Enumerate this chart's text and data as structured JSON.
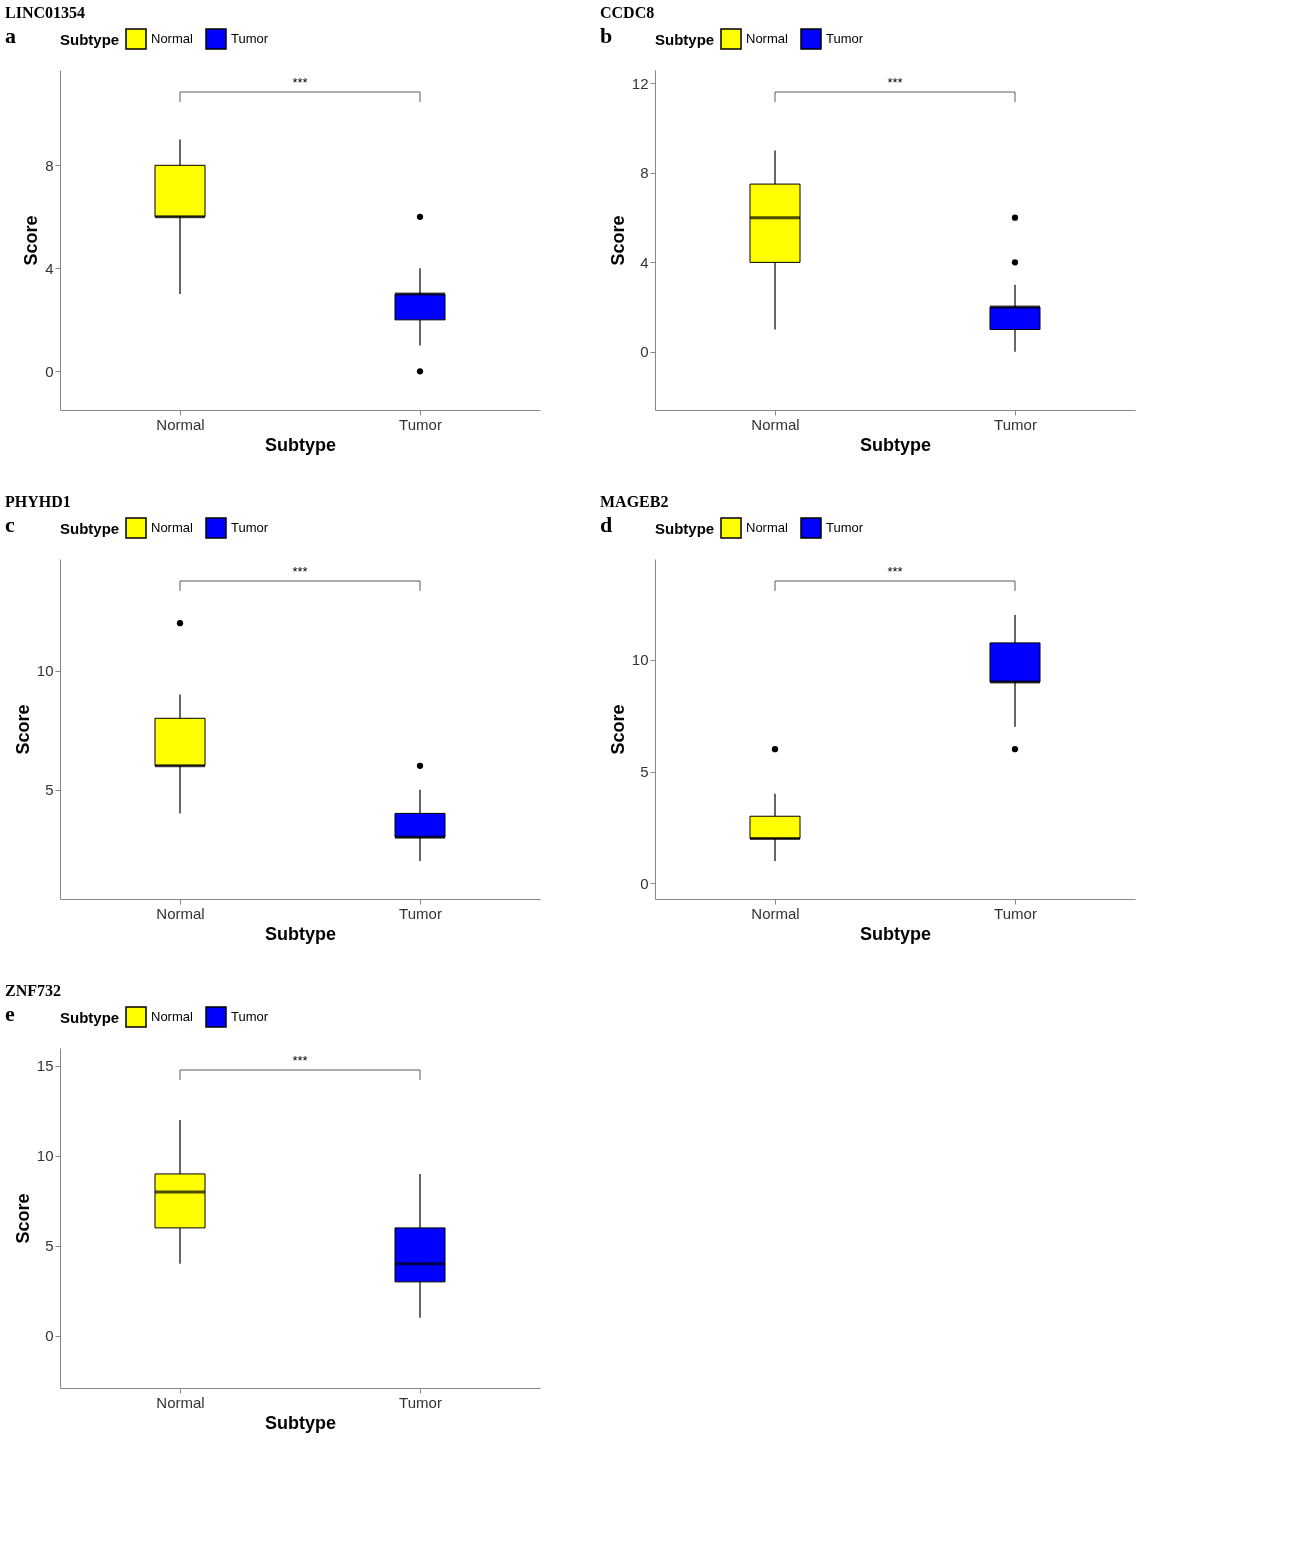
{
  "chart_data": [
    {
      "type": "box",
      "title": "LINC01354",
      "xlabel": "Subtype",
      "ylabel": "Score",
      "legend_title": "Subtype",
      "legend": "top",
      "annotations": [
        "a",
        "***"
      ],
      "categories": [
        "Normal",
        "Tumor"
      ],
      "ylim": [
        -1.5,
        11.7
      ],
      "yticks": [
        0,
        4,
        8
      ],
      "series": [
        {
          "name": "Normal",
          "color": "#ffff00",
          "boxes": [
            {
              "low": 3,
              "q1": 6,
              "median": 6,
              "q3": 8,
              "high": 9
            },
            null
          ]
        },
        {
          "name": "Tumor",
          "color": "#0000ff",
          "boxes": [
            null,
            {
              "low": 1,
              "q1": 2,
              "median": 3,
              "q3": 3,
              "high": 4,
              "outliers": [
                6,
                0
              ]
            }
          ]
        }
      ]
    },
    {
      "type": "box",
      "title": "CCDC8",
      "xlabel": "Subtype",
      "ylabel": "Score",
      "legend_title": "Subtype",
      "legend": "top",
      "annotations": [
        "b",
        "***"
      ],
      "categories": [
        "Normal",
        "Tumor"
      ],
      "ylim": [
        -2.6,
        12.6
      ],
      "yticks": [
        0,
        4,
        8,
        12
      ],
      "series": [
        {
          "name": "Normal",
          "color": "#ffff00",
          "boxes": [
            {
              "low": 1,
              "q1": 4,
              "median": 6,
              "q3": 7.5,
              "high": 9
            },
            null
          ]
        },
        {
          "name": "Tumor",
          "color": "#0000ff",
          "boxes": [
            null,
            {
              "low": 0,
              "q1": 1,
              "median": 2,
              "q3": 2,
              "high": 3,
              "outliers": [
                6,
                4
              ]
            }
          ]
        }
      ]
    },
    {
      "type": "box",
      "title": "PHYHD1",
      "xlabel": "Subtype",
      "ylabel": "Score",
      "legend_title": "Subtype",
      "legend": "top",
      "annotations": [
        "c",
        "***"
      ],
      "categories": [
        "Normal",
        "Tumor"
      ],
      "ylim": [
        0.4,
        14.7
      ],
      "yticks": [
        5,
        10
      ],
      "series": [
        {
          "name": "Normal",
          "color": "#ffff00",
          "boxes": [
            {
              "low": 4,
              "q1": 6,
              "median": 6,
              "q3": 8,
              "high": 9,
              "outliers": [
                12
              ]
            },
            null
          ]
        },
        {
          "name": "Tumor",
          "color": "#0000ff",
          "boxes": [
            null,
            {
              "low": 2,
              "q1": 3,
              "median": 3,
              "q3": 4,
              "high": 5,
              "outliers": [
                6
              ]
            }
          ]
        }
      ]
    },
    {
      "type": "box",
      "title": "MAGEB2",
      "xlabel": "Subtype",
      "ylabel": "Score",
      "legend_title": "Subtype",
      "legend": "top",
      "annotations": [
        "d",
        "***"
      ],
      "categories": [
        "Normal",
        "Tumor"
      ],
      "ylim": [
        -0.7,
        14.5
      ],
      "yticks": [
        0,
        5,
        10
      ],
      "series": [
        {
          "name": "Normal",
          "color": "#ffff00",
          "boxes": [
            {
              "low": 1,
              "q1": 2,
              "median": 2,
              "q3": 3,
              "high": 4,
              "outliers": [
                6
              ]
            },
            null
          ]
        },
        {
          "name": "Tumor",
          "color": "#0000ff",
          "boxes": [
            null,
            {
              "low": 7,
              "q1": 9,
              "median": 9,
              "q3": 10.75,
              "high": 12,
              "outliers": [
                6
              ]
            }
          ]
        }
      ]
    },
    {
      "type": "box",
      "title": "ZNF732",
      "xlabel": "Subtype",
      "ylabel": "Score",
      "legend_title": "Subtype",
      "legend": "top",
      "annotations": [
        "e",
        "***"
      ],
      "categories": [
        "Normal",
        "Tumor"
      ],
      "ylim": [
        -2.9,
        16
      ],
      "yticks": [
        0,
        5,
        10,
        15
      ],
      "series": [
        {
          "name": "Normal",
          "color": "#ffff00",
          "boxes": [
            {
              "low": 4,
              "q1": 6,
              "median": 8,
              "q3": 9,
              "high": 12
            },
            null
          ]
        },
        {
          "name": "Tumor",
          "color": "#0000ff",
          "boxes": [
            null,
            {
              "low": 1,
              "q1": 3,
              "median": 4,
              "q3": 6,
              "high": 9
            }
          ]
        }
      ]
    }
  ]
}
